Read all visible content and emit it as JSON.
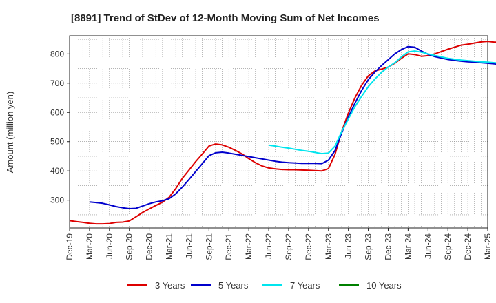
{
  "chart_data": {
    "type": "line",
    "title": "[8891]  Trend of StDev of 12-Month Moving Sum of Net Incomes",
    "ylabel": "Amount (million yen)",
    "xlabel": "",
    "ylim": [
      205,
      862
    ],
    "yticks": [
      300,
      400,
      500,
      600,
      700,
      800
    ],
    "xlim": [
      "2019-12",
      "2025-03"
    ],
    "x_tick_labels": [
      "Dec-19",
      "Mar-20",
      "Jun-20",
      "Sep-20",
      "Dec-20",
      "Mar-21",
      "Jun-21",
      "Sep-21",
      "Dec-21",
      "Mar-22",
      "Jun-22",
      "Sep-22",
      "Dec-22",
      "Mar-23",
      "Jun-23",
      "Sep-23",
      "Dec-23",
      "Mar-24",
      "Jun-24",
      "Sep-24",
      "Dec-24",
      "Mar-25"
    ],
    "grid": true,
    "legend_position": "bottom",
    "series": [
      {
        "name": "3 Years",
        "color": "#dd0000",
        "points": [
          [
            "2019-12",
            230
          ],
          [
            "2020-01",
            227
          ],
          [
            "2020-02",
            224
          ],
          [
            "2020-03",
            221
          ],
          [
            "2020-04",
            219
          ],
          [
            "2020-05",
            219
          ],
          [
            "2020-06",
            220
          ],
          [
            "2020-07",
            224
          ],
          [
            "2020-08",
            225
          ],
          [
            "2020-09",
            229
          ],
          [
            "2020-10",
            243
          ],
          [
            "2020-11",
            258
          ],
          [
            "2020-12",
            270
          ],
          [
            "2021-01",
            282
          ],
          [
            "2021-02",
            293
          ],
          [
            "2021-03",
            310
          ],
          [
            "2021-04",
            340
          ],
          [
            "2021-05",
            375
          ],
          [
            "2021-06",
            403
          ],
          [
            "2021-07",
            432
          ],
          [
            "2021-08",
            458
          ],
          [
            "2021-09",
            485
          ],
          [
            "2021-10",
            492
          ],
          [
            "2021-11",
            489
          ],
          [
            "2021-12",
            481
          ],
          [
            "2022-01",
            470
          ],
          [
            "2022-02",
            458
          ],
          [
            "2022-03",
            442
          ],
          [
            "2022-04",
            428
          ],
          [
            "2022-05",
            417
          ],
          [
            "2022-06",
            410
          ],
          [
            "2022-07",
            407
          ],
          [
            "2022-08",
            405
          ],
          [
            "2022-09",
            404
          ],
          [
            "2022-10",
            404
          ],
          [
            "2022-11",
            403
          ],
          [
            "2022-12",
            402
          ],
          [
            "2023-01",
            401
          ],
          [
            "2023-02",
            400
          ],
          [
            "2023-03",
            408
          ],
          [
            "2023-04",
            457
          ],
          [
            "2023-05",
            535
          ],
          [
            "2023-06",
            598
          ],
          [
            "2023-07",
            650
          ],
          [
            "2023-08",
            693
          ],
          [
            "2023-09",
            725
          ],
          [
            "2023-10",
            742
          ],
          [
            "2023-11",
            748
          ],
          [
            "2023-12",
            755
          ],
          [
            "2024-01",
            768
          ],
          [
            "2024-02",
            785
          ],
          [
            "2024-03",
            800
          ],
          [
            "2024-04",
            798
          ],
          [
            "2024-05",
            792
          ],
          [
            "2024-06",
            794
          ],
          [
            "2024-07",
            800
          ],
          [
            "2024-08",
            808
          ],
          [
            "2024-09",
            816
          ],
          [
            "2024-10",
            823
          ],
          [
            "2024-11",
            830
          ],
          [
            "2024-12",
            833
          ],
          [
            "2025-01",
            837
          ],
          [
            "2025-02",
            841
          ],
          [
            "2025-03",
            843
          ],
          [
            "2025-04",
            840
          ],
          [
            "2025-05",
            840
          ],
          [
            "2025-06",
            841
          ],
          [
            "2025-07",
            842
          ]
        ]
      },
      {
        "name": "5 Years",
        "color": "#0000cc",
        "points": [
          [
            "2020-03",
            294
          ],
          [
            "2020-04",
            292
          ],
          [
            "2020-05",
            289
          ],
          [
            "2020-06",
            284
          ],
          [
            "2020-07",
            278
          ],
          [
            "2020-08",
            274
          ],
          [
            "2020-09",
            271
          ],
          [
            "2020-10",
            272
          ],
          [
            "2020-11",
            280
          ],
          [
            "2020-12",
            288
          ],
          [
            "2021-01",
            294
          ],
          [
            "2021-02",
            298
          ],
          [
            "2021-03",
            305
          ],
          [
            "2021-04",
            322
          ],
          [
            "2021-05",
            345
          ],
          [
            "2021-06",
            371
          ],
          [
            "2021-07",
            398
          ],
          [
            "2021-08",
            425
          ],
          [
            "2021-09",
            452
          ],
          [
            "2021-10",
            462
          ],
          [
            "2021-11",
            464
          ],
          [
            "2021-12",
            461
          ],
          [
            "2022-01",
            457
          ],
          [
            "2022-02",
            453
          ],
          [
            "2022-03",
            449
          ],
          [
            "2022-04",
            445
          ],
          [
            "2022-05",
            441
          ],
          [
            "2022-06",
            437
          ],
          [
            "2022-07",
            433
          ],
          [
            "2022-08",
            430
          ],
          [
            "2022-09",
            428
          ],
          [
            "2022-10",
            427
          ],
          [
            "2022-11",
            426
          ],
          [
            "2022-12",
            426
          ],
          [
            "2023-01",
            426
          ],
          [
            "2023-02",
            425
          ],
          [
            "2023-03",
            437
          ],
          [
            "2023-04",
            470
          ],
          [
            "2023-05",
            530
          ],
          [
            "2023-06",
            585
          ],
          [
            "2023-07",
            632
          ],
          [
            "2023-08",
            675
          ],
          [
            "2023-09",
            712
          ],
          [
            "2023-10",
            738
          ],
          [
            "2023-11",
            760
          ],
          [
            "2023-12",
            780
          ],
          [
            "2024-01",
            800
          ],
          [
            "2024-02",
            815
          ],
          [
            "2024-03",
            825
          ],
          [
            "2024-04",
            823
          ],
          [
            "2024-05",
            810
          ],
          [
            "2024-06",
            799
          ],
          [
            "2024-07",
            791
          ],
          [
            "2024-08",
            786
          ],
          [
            "2024-09",
            781
          ],
          [
            "2024-10",
            778
          ],
          [
            "2024-11",
            775
          ],
          [
            "2024-12",
            773
          ],
          [
            "2025-01",
            772
          ],
          [
            "2025-02",
            770
          ],
          [
            "2025-03",
            768
          ],
          [
            "2025-04",
            766
          ],
          [
            "2025-05",
            763
          ],
          [
            "2025-06",
            761
          ],
          [
            "2025-07",
            760
          ]
        ]
      },
      {
        "name": "7 Years",
        "color": "#00e5ee",
        "points": [
          [
            "2022-06",
            488
          ],
          [
            "2022-07",
            485
          ],
          [
            "2022-08",
            481
          ],
          [
            "2022-09",
            478
          ],
          [
            "2022-10",
            474
          ],
          [
            "2022-11",
            470
          ],
          [
            "2022-12",
            467
          ],
          [
            "2023-01",
            463
          ],
          [
            "2023-02",
            459
          ],
          [
            "2023-03",
            461
          ],
          [
            "2023-04",
            485
          ],
          [
            "2023-05",
            535
          ],
          [
            "2023-06",
            578
          ],
          [
            "2023-07",
            620
          ],
          [
            "2023-08",
            655
          ],
          [
            "2023-09",
            688
          ],
          [
            "2023-10",
            714
          ],
          [
            "2023-11",
            737
          ],
          [
            "2023-12",
            755
          ],
          [
            "2024-01",
            770
          ],
          [
            "2024-02",
            790
          ],
          [
            "2024-03",
            807
          ],
          [
            "2024-04",
            810
          ],
          [
            "2024-05",
            806
          ],
          [
            "2024-06",
            800
          ],
          [
            "2024-07",
            795
          ],
          [
            "2024-08",
            790
          ],
          [
            "2024-09",
            785
          ],
          [
            "2024-10",
            782
          ],
          [
            "2024-11",
            779
          ],
          [
            "2024-12",
            777
          ],
          [
            "2025-01",
            775
          ],
          [
            "2025-02",
            773
          ],
          [
            "2025-03",
            772
          ],
          [
            "2025-04",
            770
          ],
          [
            "2025-05",
            768
          ],
          [
            "2025-06",
            766
          ],
          [
            "2025-07",
            765
          ]
        ]
      },
      {
        "name": "10 Years",
        "color": "#008000",
        "points": []
      }
    ]
  }
}
